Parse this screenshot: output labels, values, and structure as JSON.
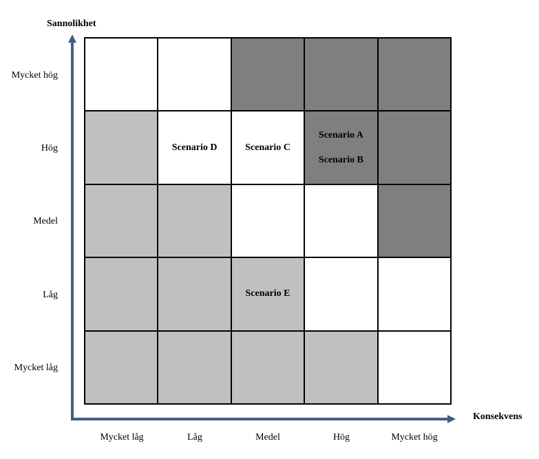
{
  "y_axis": {
    "title": "Sannolikhet",
    "labels": [
      "Mycket hög",
      "Hög",
      "Medel",
      "Låg",
      "Mycket låg"
    ]
  },
  "x_axis": {
    "title": "Konsekvens",
    "labels": [
      "Mycket låg",
      "Låg",
      "Medel",
      "Hög",
      "Mycket hög"
    ]
  },
  "colors": {
    "white": "#ffffff",
    "light": "#c0c0c0",
    "dark": "#7f7f7f",
    "axis": "#3d5f86"
  },
  "matrix": [
    [
      {
        "fill": "white",
        "items": []
      },
      {
        "fill": "white",
        "items": []
      },
      {
        "fill": "dark",
        "items": []
      },
      {
        "fill": "dark",
        "items": []
      },
      {
        "fill": "dark",
        "items": []
      }
    ],
    [
      {
        "fill": "light",
        "items": []
      },
      {
        "fill": "white",
        "items": [
          "Scenario D"
        ]
      },
      {
        "fill": "white",
        "items": [
          "Scenario C"
        ]
      },
      {
        "fill": "dark",
        "items": [
          "Scenario A",
          "Scenario B"
        ]
      },
      {
        "fill": "dark",
        "items": []
      }
    ],
    [
      {
        "fill": "light",
        "items": []
      },
      {
        "fill": "light",
        "items": []
      },
      {
        "fill": "white",
        "items": []
      },
      {
        "fill": "white",
        "items": []
      },
      {
        "fill": "dark",
        "items": []
      }
    ],
    [
      {
        "fill": "light",
        "items": []
      },
      {
        "fill": "light",
        "items": []
      },
      {
        "fill": "light",
        "items": [
          "Scenario E"
        ]
      },
      {
        "fill": "white",
        "items": []
      },
      {
        "fill": "white",
        "items": []
      }
    ],
    [
      {
        "fill": "light",
        "items": []
      },
      {
        "fill": "light",
        "items": []
      },
      {
        "fill": "light",
        "items": []
      },
      {
        "fill": "light",
        "items": []
      },
      {
        "fill": "white",
        "items": []
      }
    ]
  ]
}
